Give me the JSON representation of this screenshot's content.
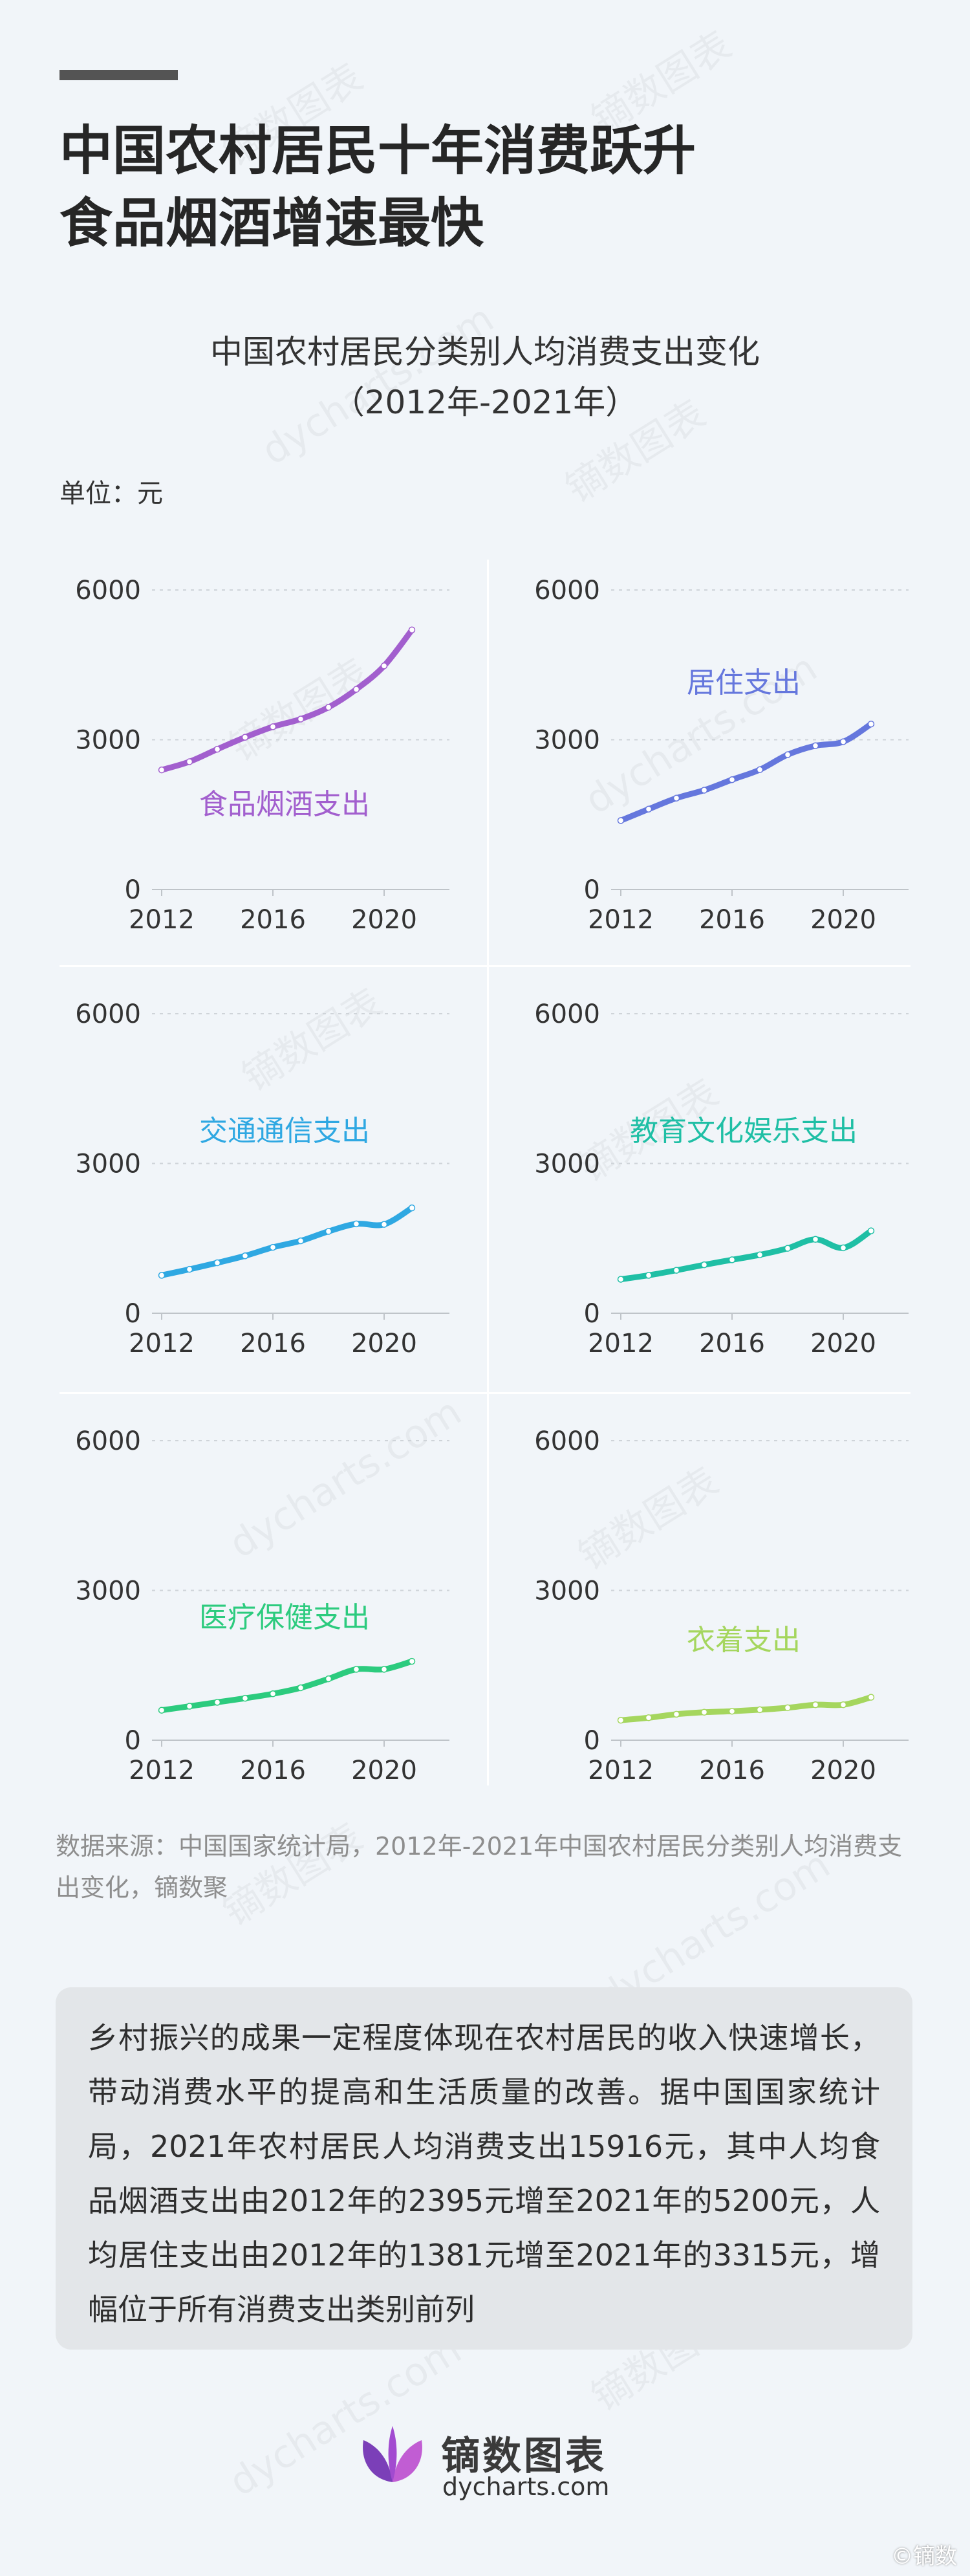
{
  "headline": {
    "line1": "中国农村居民十年消费跃升",
    "line2": "食品烟酒增速最快"
  },
  "chart_title": {
    "line1": "中国农村居民分类别人均消费支出变化",
    "line2": "（2012年-2021年）"
  },
  "unit_label": "单位：元",
  "chart_data": [
    {
      "type": "line",
      "title": "食品烟酒支出",
      "color": "#a25fce",
      "x": [
        2012,
        2013,
        2014,
        2015,
        2016,
        2017,
        2018,
        2019,
        2020,
        2021
      ],
      "y": [
        2395,
        2560,
        2810,
        3050,
        3260,
        3415,
        3650,
        4010,
        4480,
        5200
      ],
      "ylim": [
        0,
        6000
      ],
      "yticks": [
        "0",
        "3000",
        "6000"
      ],
      "xticks": [
        "2012",
        "2016",
        "2020"
      ]
    },
    {
      "type": "line",
      "title": "居住支出",
      "color": "#6577dd",
      "x": [
        2012,
        2013,
        2014,
        2015,
        2016,
        2017,
        2018,
        2019,
        2020,
        2021
      ],
      "y": [
        1381,
        1610,
        1830,
        1990,
        2200,
        2400,
        2700,
        2880,
        2960,
        3315
      ],
      "ylim": [
        0,
        6000
      ],
      "yticks": [
        "0",
        "3000",
        "6000"
      ],
      "xticks": [
        "2012",
        "2016",
        "2020"
      ]
    },
    {
      "type": "line",
      "title": "交通通信支出",
      "color": "#2fa8e2",
      "x": [
        2012,
        2013,
        2014,
        2015,
        2016,
        2017,
        2018,
        2019,
        2020,
        2021
      ],
      "y": [
        760,
        880,
        1010,
        1150,
        1320,
        1450,
        1640,
        1790,
        1780,
        2110
      ],
      "ylim": [
        0,
        6000
      ],
      "yticks": [
        "0",
        "3000",
        "6000"
      ],
      "xticks": [
        "2012",
        "2016",
        "2020"
      ]
    },
    {
      "type": "line",
      "title": "教育文化娱乐支出",
      "color": "#1fbfa5",
      "x": [
        2012,
        2013,
        2014,
        2015,
        2016,
        2017,
        2018,
        2019,
        2020,
        2021
      ],
      "y": [
        680,
        760,
        860,
        970,
        1070,
        1170,
        1300,
        1480,
        1310,
        1650
      ],
      "ylim": [
        0,
        6000
      ],
      "yticks": [
        "0",
        "3000",
        "6000"
      ],
      "xticks": [
        "2012",
        "2016",
        "2020"
      ]
    },
    {
      "type": "line",
      "title": "医疗保健支出",
      "color": "#2ccb7e",
      "x": [
        2012,
        2013,
        2014,
        2015,
        2016,
        2017,
        2018,
        2019,
        2020,
        2021
      ],
      "y": [
        600,
        680,
        760,
        840,
        930,
        1050,
        1230,
        1420,
        1420,
        1580
      ],
      "ylim": [
        0,
        6000
      ],
      "yticks": [
        "0",
        "3000",
        "6000"
      ],
      "xticks": [
        "2012",
        "2016",
        "2020"
      ]
    },
    {
      "type": "line",
      "title": "衣着支出",
      "color": "#a5d65e",
      "x": [
        2012,
        2013,
        2014,
        2015,
        2016,
        2017,
        2018,
        2019,
        2020,
        2021
      ],
      "y": [
        400,
        450,
        520,
        560,
        580,
        610,
        650,
        710,
        710,
        860
      ],
      "ylim": [
        0,
        6000
      ],
      "yticks": [
        "0",
        "3000",
        "6000"
      ],
      "xticks": [
        "2012",
        "2016",
        "2020"
      ]
    }
  ],
  "source": "数据来源：中国国家统计局，2012年-2021年中国农村居民分类别人均消费支出变化，镝数聚",
  "summary": "乡村振兴的成果一定程度体现在农村居民的收入快速增长，带动消费水平的提高和生活质量的改善。据中国国家统计局，2021年农村居民人均消费支出15916元，其中人均食品烟酒支出由2012年的2395元增至2021年的5200元，人均居住支出由2012年的1381元增至2021年的3315元，增幅位于所有消费支出类别前列",
  "logo": {
    "name_cn": "镝数图表",
    "name_en": "dycharts.com"
  },
  "watermark_text": "©镝数",
  "bg_watermarks": [
    "镝数图表",
    "dycharts.com"
  ]
}
